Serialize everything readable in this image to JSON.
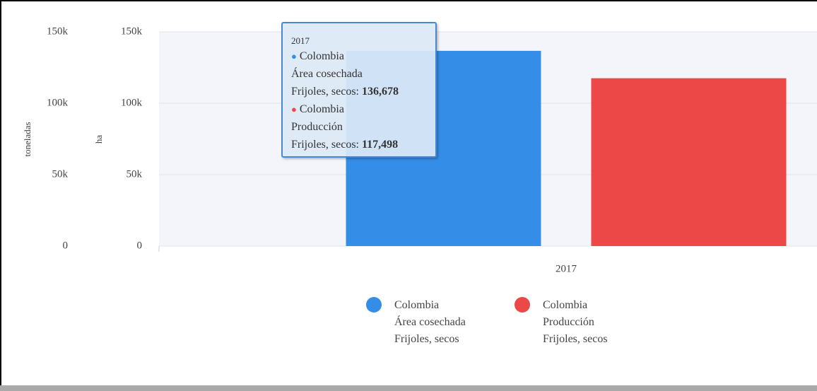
{
  "chart_data": {
    "type": "bar",
    "categories": [
      "2017"
    ],
    "ylabel": "toneladas",
    "y2label": "ha",
    "ylim": [
      0,
      150000
    ],
    "yticks": [
      0,
      {
        "value": 50000,
        "label": "50k"
      },
      {
        "value": 100000,
        "label": "100k"
      },
      {
        "value": 150000,
        "label": "150k"
      }
    ],
    "y2lim": [
      0,
      150000
    ],
    "y2ticks": [
      0,
      {
        "value": 50000,
        "label": "50k"
      },
      {
        "value": 100000,
        "label": "100k"
      },
      {
        "value": 150000,
        "label": "150k"
      }
    ],
    "grid": true,
    "series": [
      {
        "name": "Colombia\nÁrea cosechada\nFrijoles, secos",
        "color": "#348ee8",
        "axis": "y2",
        "values": [
          136678
        ],
        "value_labels": [
          "136,678"
        ],
        "tooltip_label": "Colombia\nÁrea cosechada\nFrijoles, secos:"
      },
      {
        "name": "Colombia\nProducción\nFrijoles, secos",
        "color": "#ec4848",
        "values": [
          117498
        ],
        "value_labels": [
          "117,498"
        ],
        "tooltip_label": "Colombia\nProducción\nFrijoles, secos:"
      }
    ]
  }
}
